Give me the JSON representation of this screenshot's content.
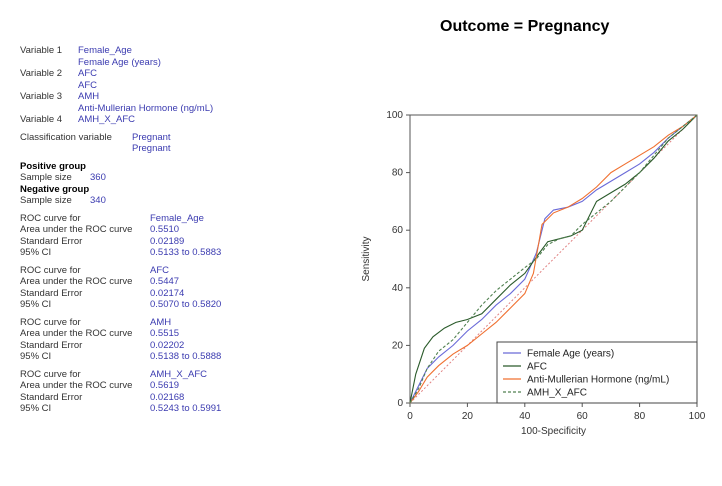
{
  "stats": {
    "variables": [
      {
        "label": "Variable 1",
        "name": "Female_Age",
        "desc": "Female Age (years)"
      },
      {
        "label": "Variable 2",
        "name": "AFC",
        "desc": "AFC"
      },
      {
        "label": "Variable 3",
        "name": "AMH",
        "desc": "Anti-Mullerian Hormone (ng/mL)"
      },
      {
        "label": "Variable 4",
        "name": "AMH_X_AFC",
        "desc": ""
      }
    ],
    "classification": {
      "label": "Classification variable",
      "name": "Pregnant",
      "desc": "Pregnant"
    },
    "positive": {
      "heading": "Positive group",
      "size_label": "Sample size",
      "size": "360"
    },
    "negative": {
      "heading": "Negative group",
      "size_label": "Sample size",
      "size": "340"
    },
    "roc_labels": {
      "curve": "ROC curve for",
      "auc": "Area under the ROC curve",
      "se": "Standard Error",
      "ci": "95% CI"
    },
    "roc": [
      {
        "name": "Female_Age",
        "auc": "0.5510",
        "se": "0.02189",
        "ci": "0.5133 to 0.5883"
      },
      {
        "name": "AFC",
        "auc": "0.5447",
        "se": "0.02174",
        "ci": "0.5070 to 0.5820"
      },
      {
        "name": "AMH",
        "auc": "0.5515",
        "se": "0.02202",
        "ci": "0.5138 to 0.5888"
      },
      {
        "name": "AMH_X_AFC",
        "auc": "0.5619",
        "se": "0.02168",
        "ci": "0.5243 to 0.5991"
      }
    ]
  },
  "chart_data": {
    "type": "line",
    "title": "Outcome = Pregnancy",
    "xlabel": "100-Specificity",
    "ylabel": "Sensitivity",
    "xlim": [
      0,
      100
    ],
    "ylim": [
      0,
      100
    ],
    "xticks": [
      "0",
      "20",
      "40",
      "60",
      "80",
      "100"
    ],
    "yticks": [
      "0",
      "20",
      "40",
      "60",
      "80",
      "100"
    ],
    "legend_position": "bottom-right",
    "grid": false,
    "reference_line": {
      "x": [
        0,
        100
      ],
      "y": [
        0,
        100
      ],
      "color": "#e08080"
    },
    "series": [
      {
        "name": "Female Age (years)",
        "color": "#6a6ad8",
        "dash": "",
        "x": [
          0,
          3,
          6,
          10,
          15,
          20,
          25,
          30,
          35,
          40,
          44,
          47,
          50,
          55,
          60,
          65,
          70,
          75,
          80,
          85,
          90,
          95,
          100
        ],
        "y": [
          0,
          6,
          12,
          16,
          20,
          25,
          29,
          34,
          38,
          43,
          52,
          64,
          67,
          68,
          70,
          74,
          77,
          80,
          83,
          87,
          92,
          96,
          100
        ]
      },
      {
        "name": "AFC",
        "color": "#2a5a2a",
        "dash": "",
        "x": [
          0,
          2,
          5,
          8,
          12,
          16,
          20,
          25,
          30,
          35,
          40,
          45,
          48,
          52,
          56,
          60,
          65,
          70,
          75,
          80,
          85,
          90,
          95,
          100
        ],
        "y": [
          0,
          10,
          19,
          23,
          26,
          28,
          29,
          31,
          36,
          41,
          45,
          52,
          56,
          57,
          58,
          60,
          70,
          73,
          76,
          80,
          85,
          91,
          95,
          100
        ]
      },
      {
        "name": "Anti-Mullerian Hormone (ng/mL)",
        "color": "#f07030",
        "dash": "",
        "x": [
          0,
          3,
          6,
          10,
          15,
          20,
          25,
          30,
          35,
          40,
          43,
          46,
          50,
          55,
          60,
          65,
          70,
          75,
          80,
          85,
          90,
          95,
          100
        ],
        "y": [
          0,
          4,
          9,
          13,
          17,
          20,
          24,
          28,
          33,
          38,
          45,
          62,
          66,
          68,
          71,
          75,
          80,
          83,
          86,
          89,
          93,
          96,
          100
        ]
      },
      {
        "name": "AMH_X_AFC",
        "color": "#508050",
        "dash": "3,2",
        "x": [
          0,
          3,
          6,
          10,
          15,
          20,
          25,
          30,
          35,
          40,
          44,
          48,
          52,
          56,
          60,
          65,
          70,
          75,
          80,
          85,
          90,
          95,
          100
        ],
        "y": [
          0,
          5,
          12,
          18,
          22,
          28,
          34,
          39,
          43,
          47,
          50,
          55,
          57,
          58,
          62,
          66,
          70,
          75,
          80,
          86,
          92,
          96,
          100
        ]
      }
    ]
  }
}
